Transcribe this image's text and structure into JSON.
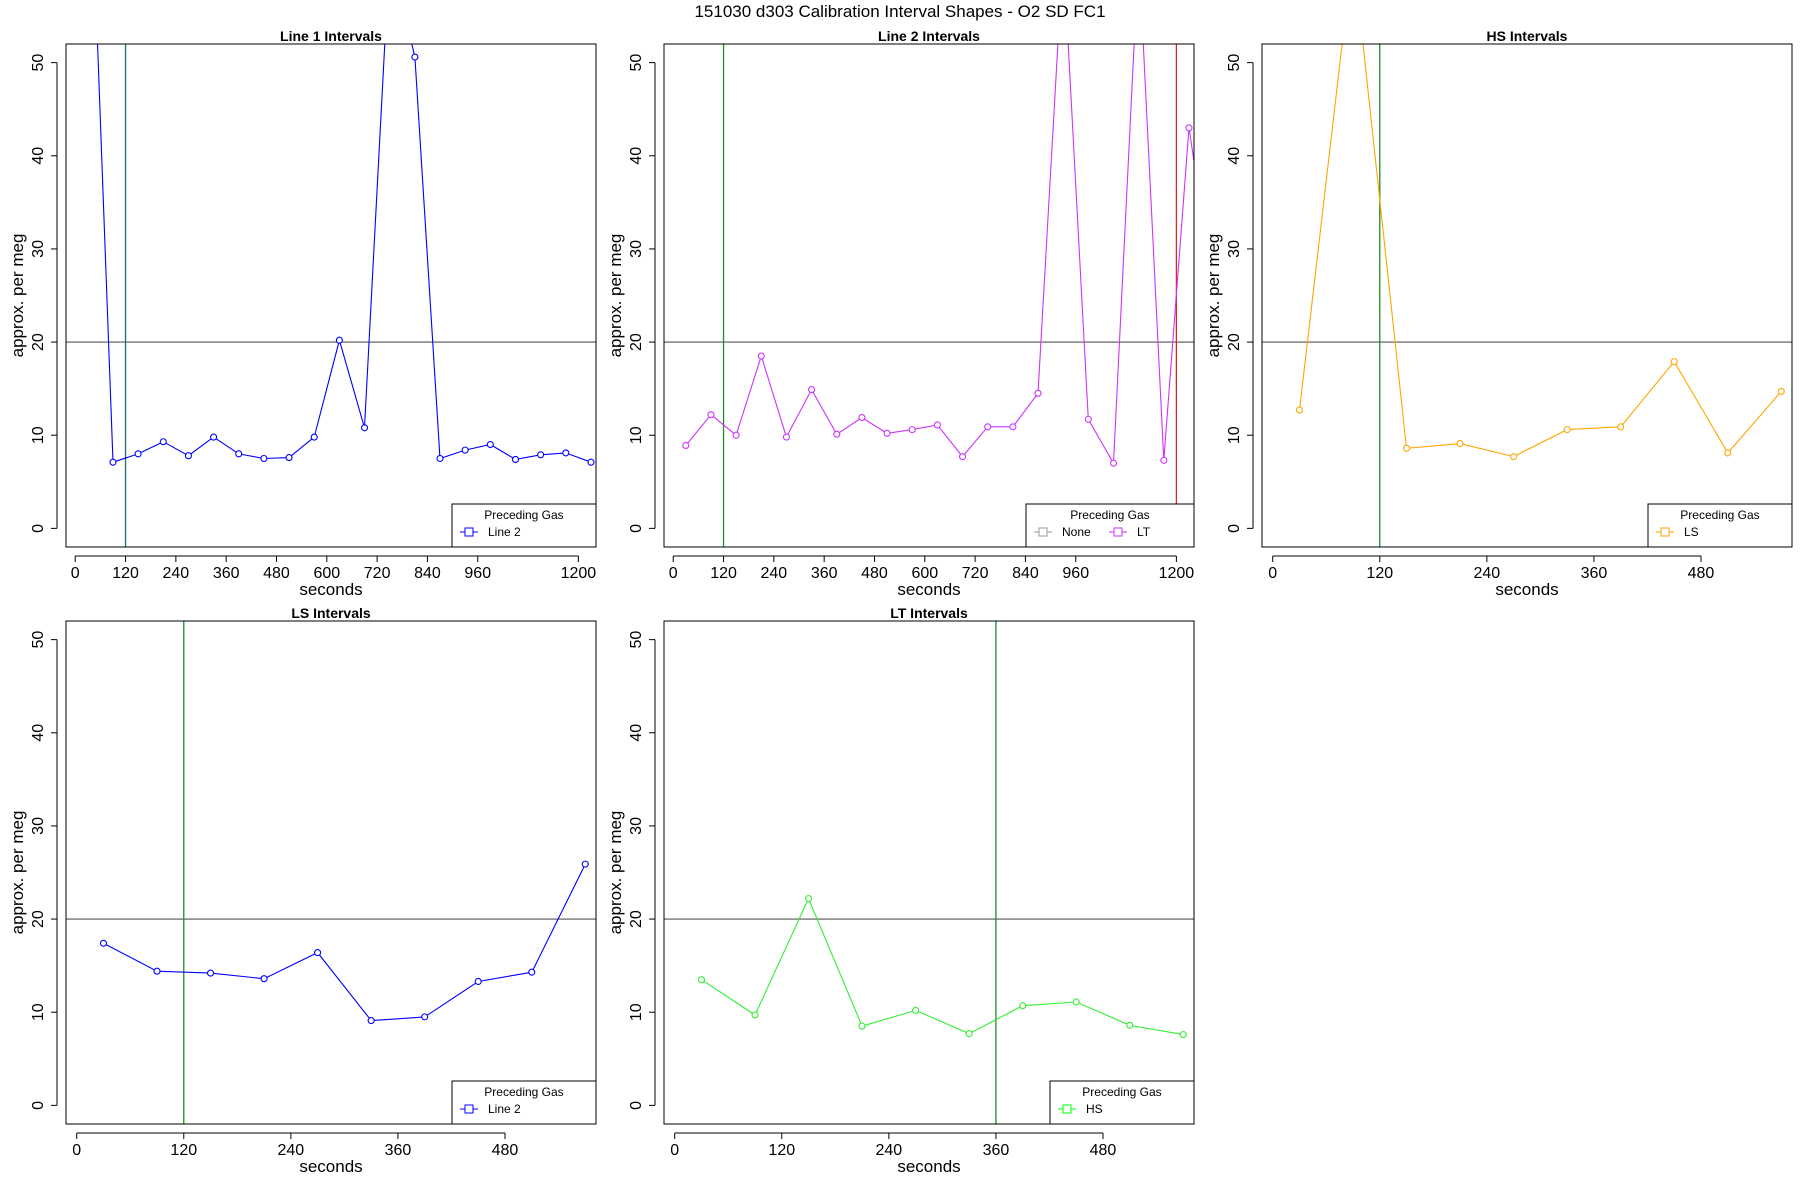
{
  "title": "151030   d303   Calibration Interval Shapes - O2 SD FC1",
  "chart_data": [
    {
      "type": "line",
      "title": "Line 1 Intervals",
      "xlabel": "seconds",
      "ylabel": "approx. per meg",
      "xlim": [
        -22,
        1242
      ],
      "ylim": [
        -2,
        52
      ],
      "x_ticks": [
        0,
        120,
        240,
        360,
        480,
        600,
        720,
        840,
        960,
        1200
      ],
      "y_ticks": [
        0,
        10,
        20,
        30,
        40,
        50
      ],
      "hline": 20,
      "vlines": [
        {
          "x": 120,
          "color": "#1f6e6e"
        }
      ],
      "legend": {
        "title": "Preceding Gas",
        "position": "bottom-right",
        "entries": [
          {
            "label": "Line 2",
            "color": "#0000ff"
          }
        ]
      },
      "series": [
        {
          "color": "#0000ff",
          "points": [
            [
              45,
              62
            ],
            [
              90,
              7.1
            ],
            [
              150,
              8.0
            ],
            [
              210,
              9.3
            ],
            [
              270,
              7.8
            ],
            [
              330,
              9.8
            ],
            [
              390,
              8.0
            ],
            [
              450,
              7.5
            ],
            [
              510,
              7.6
            ],
            [
              570,
              9.8
            ],
            [
              630,
              20.2
            ],
            [
              690,
              10.8
            ],
            [
              750,
              62
            ],
            [
              810,
              50.6
            ],
            [
              870,
              7.5
            ],
            [
              930,
              8.4
            ],
            [
              990,
              9.0
            ],
            [
              1050,
              7.4
            ],
            [
              1110,
              7.9
            ],
            [
              1170,
              8.1
            ],
            [
              1230,
              7.1
            ]
          ]
        }
      ]
    },
    {
      "type": "line",
      "title": "Line 2 Intervals",
      "xlabel": "seconds",
      "ylabel": "approx. per meg",
      "xlim": [
        -22,
        1242
      ],
      "ylim": [
        -2,
        52
      ],
      "x_ticks": [
        0,
        120,
        240,
        360,
        480,
        600,
        720,
        840,
        960,
        1200
      ],
      "y_ticks": [
        0,
        10,
        20,
        30,
        40,
        50
      ],
      "hline": 20,
      "vlines": [
        {
          "x": 120,
          "color": "#228b22"
        },
        {
          "x": 1200,
          "color": "#dc2626"
        }
      ],
      "legend": {
        "title": "Preceding Gas",
        "position": "bottom-right",
        "entries": [
          {
            "label": "None",
            "color": "#999999"
          },
          {
            "label": "LT",
            "color": "#cc33ff"
          }
        ]
      },
      "series": [
        {
          "color": "#cc33ff",
          "points": [
            [
              30,
              8.9
            ],
            [
              90,
              12.2
            ],
            [
              150,
              10.0
            ],
            [
              210,
              18.5
            ],
            [
              270,
              9.8
            ],
            [
              330,
              14.9
            ],
            [
              390,
              10.1
            ],
            [
              450,
              11.9
            ],
            [
              510,
              10.2
            ],
            [
              570,
              10.6
            ],
            [
              630,
              11.1
            ],
            [
              690,
              7.7
            ],
            [
              750,
              10.9
            ],
            [
              810,
              10.9
            ],
            [
              870,
              14.5
            ],
            [
              930,
              62
            ],
            [
              990,
              11.7
            ],
            [
              1050,
              7.0
            ],
            [
              1110,
              62
            ],
            [
              1170,
              7.3
            ],
            [
              1230,
              43.0
            ],
            [
              1290,
              25
            ]
          ]
        }
      ]
    },
    {
      "type": "line",
      "title": "HS Intervals",
      "xlabel": "seconds",
      "ylabel": "approx. per meg",
      "xlim": [
        -12,
        582
      ],
      "ylim": [
        -2,
        52
      ],
      "x_ticks": [
        0,
        120,
        240,
        360,
        480
      ],
      "y_ticks": [
        0,
        10,
        20,
        30,
        40,
        50
      ],
      "hline": 20,
      "vlines": [
        {
          "x": 120,
          "color": "#228b22"
        }
      ],
      "legend": {
        "title": "Preceding Gas",
        "position": "bottom-right",
        "entries": [
          {
            "label": "LS",
            "color": "#ffa500"
          }
        ]
      },
      "series": [
        {
          "color": "#ffa500",
          "points": [
            [
              30,
              12.7
            ],
            [
              90,
              62
            ],
            [
              150,
              8.6
            ],
            [
              210,
              9.1
            ],
            [
              270,
              7.7
            ],
            [
              330,
              10.6
            ],
            [
              390,
              10.9
            ],
            [
              450,
              17.9
            ],
            [
              510,
              8.1
            ],
            [
              570,
              14.7
            ]
          ]
        }
      ]
    },
    {
      "type": "line",
      "title": "LS Intervals",
      "xlabel": "seconds",
      "ylabel": "approx. per meg",
      "xlim": [
        -12,
        582
      ],
      "ylim": [
        -2,
        52
      ],
      "x_ticks": [
        0,
        120,
        240,
        360,
        480
      ],
      "y_ticks": [
        0,
        10,
        20,
        30,
        40,
        50
      ],
      "hline": 20,
      "vlines": [
        {
          "x": 120,
          "color": "#228b22"
        }
      ],
      "legend": {
        "title": "Preceding Gas",
        "position": "bottom-right",
        "entries": [
          {
            "label": "Line 2",
            "color": "#0000ff"
          }
        ]
      },
      "series": [
        {
          "color": "#0000ff",
          "points": [
            [
              30,
              17.4
            ],
            [
              90,
              14.4
            ],
            [
              150,
              14.2
            ],
            [
              210,
              13.6
            ],
            [
              270,
              16.4
            ],
            [
              330,
              9.1
            ],
            [
              390,
              9.5
            ],
            [
              450,
              13.3
            ],
            [
              510,
              14.3
            ],
            [
              570,
              25.9
            ]
          ]
        }
      ]
    },
    {
      "type": "line",
      "title": "LT Intervals",
      "xlabel": "seconds",
      "ylabel": "approx. per meg",
      "xlim": [
        -12,
        582
      ],
      "ylim": [
        -2,
        52
      ],
      "x_ticks": [
        0,
        120,
        240,
        360,
        480
      ],
      "y_ticks": [
        0,
        10,
        20,
        30,
        40,
        50
      ],
      "hline": 20,
      "vlines": [
        {
          "x": 360,
          "color": "#228b22"
        }
      ],
      "legend": {
        "title": "Preceding Gas",
        "position": "bottom-right",
        "entries": [
          {
            "label": "HS",
            "color": "#00ff00"
          }
        ]
      },
      "series": [
        {
          "color": "#33ee33",
          "points": [
            [
              30,
              13.5
            ],
            [
              90,
              9.7
            ],
            [
              150,
              22.2
            ],
            [
              210,
              8.5
            ],
            [
              270,
              10.2
            ],
            [
              330,
              7.7
            ],
            [
              390,
              10.7
            ],
            [
              450,
              11.1
            ],
            [
              510,
              8.6
            ],
            [
              570,
              7.6
            ]
          ]
        }
      ]
    }
  ]
}
